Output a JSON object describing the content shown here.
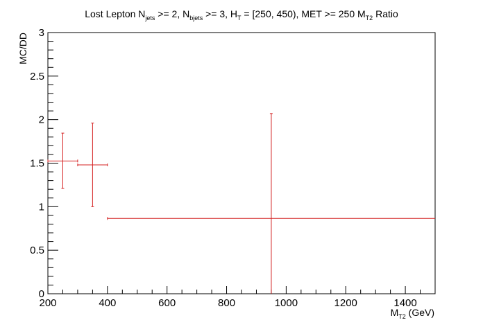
{
  "chart_data": {
    "type": "scatter",
    "title": {
      "p1": "Lost Lepton N",
      "s1": "jets",
      "p2": " >= 2, N",
      "s2": "bjets",
      "p3": " >= 3, H",
      "s3": "T",
      "p4": " = [250, 450), MET >= 250 M",
      "s4": "T2",
      "p5": " Ratio"
    },
    "xlabel": {
      "main": "M",
      "sub": "T2",
      "rest": " (GeV)"
    },
    "ylabel": "MC/DD",
    "xlim": [
      200,
      1500
    ],
    "ylim": [
      0,
      3
    ],
    "x_ticks": [
      200,
      400,
      600,
      800,
      1000,
      1200,
      1400
    ],
    "y_ticks": [
      0,
      0.5,
      1,
      1.5,
      2,
      2.5,
      3
    ],
    "y_tick_labels": [
      "0",
      "0.5",
      "1",
      "1.5",
      "2",
      "2.5",
      "3"
    ],
    "series": [
      {
        "color": "#d42020",
        "points": [
          {
            "x": 250,
            "xlow": 200,
            "xhigh": 300,
            "y": 1.525,
            "ylow": 1.21,
            "yhigh": 1.845
          },
          {
            "x": 350,
            "xlow": 300,
            "xhigh": 400,
            "y": 1.48,
            "ylow": 1.0,
            "yhigh": 1.96
          },
          {
            "x": 950,
            "xlow": 400,
            "xhigh": 1500,
            "y": 0.865,
            "ylow": 0.0,
            "yhigh": 2.07
          }
        ]
      }
    ]
  }
}
